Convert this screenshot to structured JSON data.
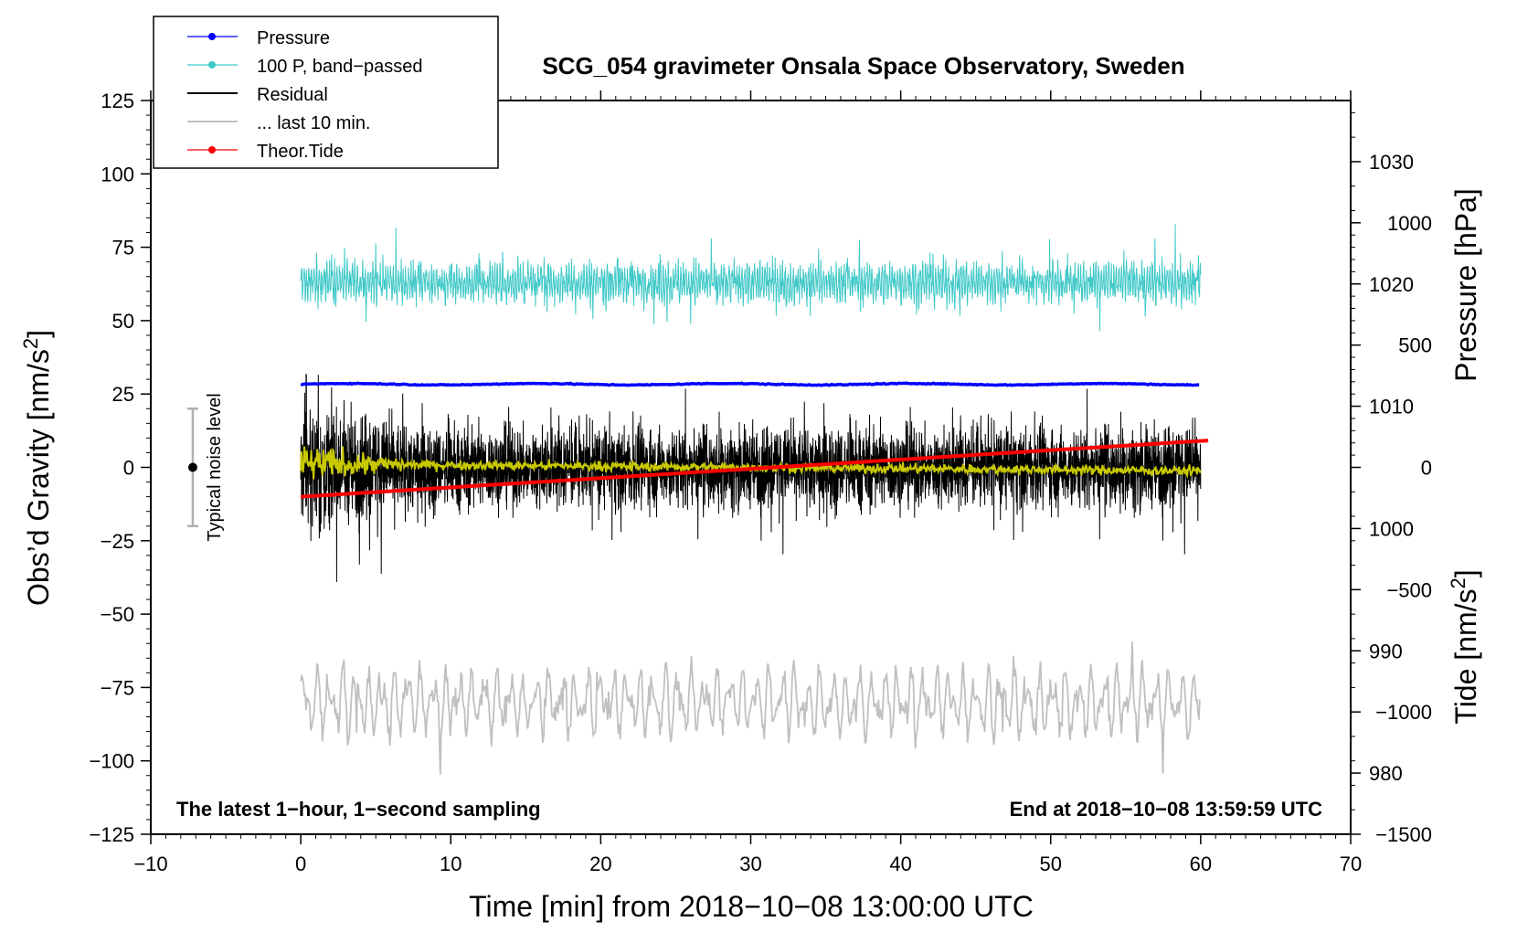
{
  "chart_data": {
    "type": "line",
    "title": "SCG_054 gravimeter Onsala Space Observatory, Sweden",
    "xlabel": "Time [min] from 2018−10−08 13:00:00 UTC",
    "ylabel_left": "Obs’d Gravity [nm/s",
    "ylabel_left_sup": "2",
    "ylabel_left_end": "]",
    "ylabel_right_pressure": "Pressure [hPa]",
    "ylabel_right_tide": "Tide [nm/s",
    "ylabel_right_tide_sup": "2",
    "ylabel_right_tide_end": "]",
    "xlim": [
      -10,
      70
    ],
    "ylim_left": [
      -125,
      125
    ],
    "pressure_ylim": [
      975,
      1035
    ],
    "tide_ylim": [
      -1500,
      1500
    ],
    "x_ticks": [
      "−10",
      "0",
      "10",
      "20",
      "30",
      "40",
      "50",
      "60",
      "70"
    ],
    "y_ticks_left": [
      "125",
      "100",
      "75",
      "50",
      "25",
      "0",
      "−25",
      "−50",
      "−75",
      "−100",
      "−125"
    ],
    "pressure_ticks": [
      "1030",
      "1020",
      "1010",
      "1000",
      "990",
      "980"
    ],
    "tide_ticks": [
      "1000",
      "500",
      "0",
      "−500",
      "−1000",
      "−1500"
    ],
    "annotation_left": "The latest 1−hour, 1−second sampling",
    "annotation_right": "End at 2018−10−08 13:59:59 UTC",
    "noise_label": "Typical noise level",
    "noise_range": [
      -20,
      20
    ],
    "legend": [
      {
        "label": "Pressure",
        "color": "#0000ff",
        "marker": true
      },
      {
        "label": "100 P, band−passed",
        "color": "#40c8c8",
        "marker": true
      },
      {
        "label": "Residual",
        "color": "#000000",
        "marker": false
      },
      {
        "label": "... last 10 min.",
        "color": "#c0c0c0",
        "marker": false
      },
      {
        "label": "Theor.Tide",
        "color": "#ff0000",
        "marker": true
      }
    ],
    "series": [
      {
        "name": "Pressure",
        "axis": "pressure",
        "x_range": [
          0,
          60
        ],
        "level": 1011.8,
        "color": "#0000ff"
      },
      {
        "name": "100 P, band−passed",
        "axis": "left",
        "x_range": [
          0,
          60
        ],
        "center": 63,
        "color": "#40c8c8"
      },
      {
        "name": "Residual",
        "axis": "left",
        "x_range": [
          0,
          60
        ],
        "center": 0,
        "amplitude": 20,
        "color": "#000000"
      },
      {
        "name": "Residual smoothed",
        "axis": "left",
        "x_range": [
          0,
          60
        ],
        "center": 0,
        "color": "#c8c800"
      },
      {
        "name": "... last 10 min.",
        "axis": "left",
        "x_range": [
          0,
          60
        ],
        "center": -80,
        "color": "#c0c0c0"
      },
      {
        "name": "Theor.Tide",
        "axis": "tide",
        "x_range": [
          0,
          60.5
        ],
        "values_range": [
          -120,
          110
        ],
        "color": "#ff0000"
      }
    ]
  }
}
